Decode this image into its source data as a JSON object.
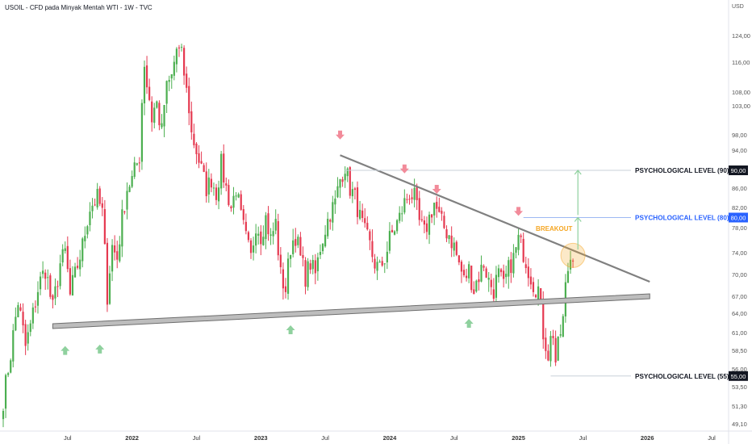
{
  "header": {
    "symbol_line": "USOIL - CFD pada Minyak Mentah WTI - 1W - TVC",
    "currency": "USD"
  },
  "colors": {
    "up": "#4CAF50",
    "down": "#E53950",
    "trendline": "#808080",
    "support_fill": "#BDBDBD",
    "level_90": "#131722",
    "level_80": "#2962FF",
    "level_55": "#131722",
    "breakout_text": "#F5A623",
    "arrow_up": "#8FD19E",
    "arrow_down": "#F28B9A"
  },
  "chart_data": {
    "type": "candlestick",
    "timeframe": "1W",
    "y_axis": {
      "ticks": [
        "124,00",
        "116,00",
        "108,00",
        "103,00",
        "98,00",
        "94,00",
        "90,00",
        "86,00",
        "82,00",
        "78,00",
        "74,00",
        "70,00",
        "67,00",
        "64,00",
        "61,00",
        "58,50",
        "56,00",
        "53,50",
        "51,30",
        "49,10"
      ],
      "tick_values": [
        124,
        116,
        108,
        103,
        98,
        94,
        90,
        86,
        82,
        78,
        74,
        70,
        67,
        64,
        61,
        58.5,
        56,
        53.5,
        51.3,
        49.1
      ]
    },
    "x_axis": {
      "ticks": [
        "Jul",
        "2022",
        "Jul",
        "2023",
        "Jul",
        "2024",
        "Jul",
        "2025",
        "Jul",
        "2026",
        "Jul"
      ],
      "tick_weeks": [
        26,
        52,
        78,
        104,
        130,
        156,
        182,
        208,
        234,
        260,
        286
      ],
      "bold": [
        "2022",
        "2023",
        "2024",
        "2025",
        "2026"
      ]
    },
    "anchors": [
      {
        "w": 0,
        "p": 52
      },
      {
        "w": 3,
        "p": 58
      },
      {
        "w": 6,
        "p": 66
      },
      {
        "w": 9,
        "p": 59
      },
      {
        "w": 11,
        "p": 62
      },
      {
        "w": 14,
        "p": 68
      },
      {
        "w": 17,
        "p": 71
      },
      {
        "w": 20,
        "p": 65
      },
      {
        "w": 23,
        "p": 72
      },
      {
        "w": 25,
        "p": 74
      },
      {
        "w": 27,
        "p": 67
      },
      {
        "w": 29,
        "p": 70
      },
      {
        "w": 32,
        "p": 75
      },
      {
        "w": 35,
        "p": 82
      },
      {
        "w": 38,
        "p": 84
      },
      {
        "w": 40,
        "p": 81
      },
      {
        "w": 42,
        "p": 67
      },
      {
        "w": 44,
        "p": 75
      },
      {
        "w": 46,
        "p": 73
      },
      {
        "w": 48,
        "p": 80
      },
      {
        "w": 50,
        "p": 86
      },
      {
        "w": 52,
        "p": 88
      },
      {
        "w": 55,
        "p": 93
      },
      {
        "w": 57,
        "p": 116
      },
      {
        "w": 58,
        "p": 110
      },
      {
        "w": 60,
        "p": 101
      },
      {
        "w": 62,
        "p": 104
      },
      {
        "w": 64,
        "p": 98
      },
      {
        "w": 66,
        "p": 109
      },
      {
        "w": 68,
        "p": 112
      },
      {
        "w": 70,
        "p": 120
      },
      {
        "w": 72,
        "p": 118
      },
      {
        "w": 74,
        "p": 108
      },
      {
        "w": 76,
        "p": 98
      },
      {
        "w": 78,
        "p": 94
      },
      {
        "w": 80,
        "p": 90
      },
      {
        "w": 82,
        "p": 86
      },
      {
        "w": 84,
        "p": 88
      },
      {
        "w": 86,
        "p": 85
      },
      {
        "w": 88,
        "p": 91
      },
      {
        "w": 90,
        "p": 86
      },
      {
        "w": 92,
        "p": 82
      },
      {
        "w": 94,
        "p": 86
      },
      {
        "w": 96,
        "p": 80
      },
      {
        "w": 98,
        "p": 76
      },
      {
        "w": 100,
        "p": 73
      },
      {
        "w": 102,
        "p": 79
      },
      {
        "w": 104,
        "p": 77
      },
      {
        "w": 106,
        "p": 80
      },
      {
        "w": 108,
        "p": 76
      },
      {
        "w": 110,
        "p": 79
      },
      {
        "w": 112,
        "p": 70
      },
      {
        "w": 114,
        "p": 68
      },
      {
        "w": 116,
        "p": 75
      },
      {
        "w": 118,
        "p": 77
      },
      {
        "w": 120,
        "p": 73
      },
      {
        "w": 122,
        "p": 70
      },
      {
        "w": 124,
        "p": 72
      },
      {
        "w": 126,
        "p": 70
      },
      {
        "w": 128,
        "p": 75
      },
      {
        "w": 130,
        "p": 78
      },
      {
        "w": 132,
        "p": 81
      },
      {
        "w": 134,
        "p": 83
      },
      {
        "w": 136,
        "p": 88
      },
      {
        "w": 138,
        "p": 91
      },
      {
        "w": 140,
        "p": 86
      },
      {
        "w": 142,
        "p": 84
      },
      {
        "w": 144,
        "p": 80
      },
      {
        "w": 146,
        "p": 77
      },
      {
        "w": 148,
        "p": 75
      },
      {
        "w": 150,
        "p": 72
      },
      {
        "w": 152,
        "p": 71
      },
      {
        "w": 154,
        "p": 73
      },
      {
        "w": 156,
        "p": 76
      },
      {
        "w": 158,
        "p": 78
      },
      {
        "w": 160,
        "p": 80
      },
      {
        "w": 162,
        "p": 83
      },
      {
        "w": 164,
        "p": 85
      },
      {
        "w": 166,
        "p": 84
      },
      {
        "w": 168,
        "p": 79
      },
      {
        "w": 170,
        "p": 77
      },
      {
        "w": 172,
        "p": 80
      },
      {
        "w": 174,
        "p": 83
      },
      {
        "w": 176,
        "p": 80
      },
      {
        "w": 178,
        "p": 78
      },
      {
        "w": 180,
        "p": 77
      },
      {
        "w": 182,
        "p": 75
      },
      {
        "w": 184,
        "p": 72
      },
      {
        "w": 186,
        "p": 69
      },
      {
        "w": 188,
        "p": 71
      },
      {
        "w": 190,
        "p": 68
      },
      {
        "w": 192,
        "p": 70
      },
      {
        "w": 194,
        "p": 72
      },
      {
        "w": 196,
        "p": 69
      },
      {
        "w": 198,
        "p": 68
      },
      {
        "w": 200,
        "p": 70
      },
      {
        "w": 202,
        "p": 68
      },
      {
        "w": 204,
        "p": 71
      },
      {
        "w": 206,
        "p": 73
      },
      {
        "w": 208,
        "p": 76
      },
      {
        "w": 210,
        "p": 74
      },
      {
        "w": 212,
        "p": 71
      },
      {
        "w": 214,
        "p": 69
      },
      {
        "w": 216,
        "p": 68
      },
      {
        "w": 218,
        "p": 61
      },
      {
        "w": 220,
        "p": 58
      },
      {
        "w": 221,
        "p": 60
      },
      {
        "w": 222,
        "p": 61
      },
      {
        "w": 223,
        "p": 57
      },
      {
        "w": 225,
        "p": 61
      },
      {
        "w": 226,
        "p": 63
      },
      {
        "w": 227,
        "p": 68
      },
      {
        "w": 228,
        "p": 71
      },
      {
        "w": 229,
        "p": 73
      },
      {
        "w": 230,
        "p": 74
      }
    ],
    "last_week": 230,
    "trendline_resistance": {
      "start": {
        "w": 136,
        "p": 93
      },
      "end": {
        "w": 261,
        "p": 69
      }
    },
    "trendline_support": {
      "start": {
        "w": 20,
        "p": 62
      },
      "end": {
        "w": 261,
        "p": 67
      }
    },
    "levels": [
      {
        "label": "PSYCHOLOGICAL LEVEL (90)",
        "price": 90,
        "axis_label": "90,00",
        "start_w": 138
      },
      {
        "label": "PSYCHOLOGICAL LEVEL (80)",
        "price": 80,
        "axis_label": "80,00",
        "start_w": 210
      },
      {
        "label": "PSYCHOLOGICAL LEVEL (55)",
        "price": 55,
        "axis_label": "55,00",
        "start_w": 221
      }
    ],
    "annotation": {
      "text": "BREAKOUT",
      "w": 215,
      "p": 77.5
    },
    "breakout_circle": {
      "w": 230,
      "p": 73.5
    },
    "down_arrows": [
      {
        "w": 136,
        "p": 97
      },
      {
        "w": 162,
        "p": 89.5
      },
      {
        "w": 175,
        "p": 85
      },
      {
        "w": 208,
        "p": 80.5
      }
    ],
    "up_arrows": [
      {
        "w": 25,
        "p": 59
      },
      {
        "w": 39,
        "p": 59.2
      },
      {
        "w": 116,
        "p": 62
      },
      {
        "w": 188,
        "p": 63
      }
    ],
    "projection_arrows": [
      {
        "w": 232,
        "from": 80.5,
        "to": 90
      },
      {
        "w": 232,
        "from": 74.5,
        "to": 80
      }
    ]
  }
}
